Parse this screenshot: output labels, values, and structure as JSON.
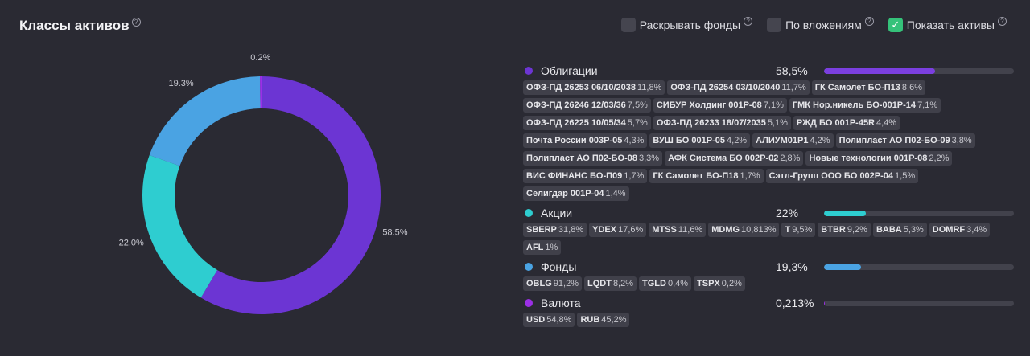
{
  "header": {
    "title": "Классы активов",
    "help": "?"
  },
  "controls": [
    {
      "label": "Раскрывать фонды",
      "checked": false,
      "check": "",
      "help": "?"
    },
    {
      "label": "По вложениям",
      "checked": false,
      "check": "",
      "help": "?"
    },
    {
      "label": "Показать активы",
      "checked": true,
      "check": "✓",
      "help": "?"
    }
  ],
  "chart_data": {
    "type": "pie",
    "donut": true,
    "slices": [
      {
        "name": "Облигации",
        "value": 58.5,
        "label": "58.5%",
        "color": "#6c35d3"
      },
      {
        "name": "Акции",
        "value": 22.0,
        "label": "22.0%",
        "color": "#2ecdd0"
      },
      {
        "name": "Фонды",
        "value": 19.3,
        "label": "19.3%",
        "color": "#4aa3e3"
      },
      {
        "name": "Валюта",
        "value": 0.213,
        "label": "0.2%",
        "color": "#9b2fe6"
      }
    ]
  },
  "classes": [
    {
      "name": "Облигации",
      "pct": "58,5%",
      "value": 58.5,
      "color": "#6c35d3",
      "bar_color": "#7b3fe0",
      "items": [
        {
          "name": "ОФЗ-ПД 26253 06/10/2038",
          "pct": "11,8%"
        },
        {
          "name": "ОФЗ-ПД 26254 03/10/2040",
          "pct": "11,7%"
        },
        {
          "name": "ГК Самолет БО-П13",
          "pct": "8,6%"
        },
        {
          "name": "ОФЗ-ПД 26246 12/03/36",
          "pct": "7,5%"
        },
        {
          "name": "СИБУР Холдинг 001P-08",
          "pct": "7,1%"
        },
        {
          "name": "ГМК Нор.никель БО-001P-14",
          "pct": "7,1%"
        },
        {
          "name": "ОФЗ-ПД 26225 10/05/34",
          "pct": "5,7%"
        },
        {
          "name": "ОФЗ-ПД 26233 18/07/2035",
          "pct": "5,1%"
        },
        {
          "name": "РЖД БО 001P-45R",
          "pct": "4,4%"
        },
        {
          "name": "Почта России 003Р-05",
          "pct": "4,3%"
        },
        {
          "name": "ВУШ БО 001Р-05",
          "pct": "4,2%"
        },
        {
          "name": "АЛИУМ01Р1",
          "pct": "4,2%"
        },
        {
          "name": "Полипласт АО П02-БО-09",
          "pct": "3,8%"
        },
        {
          "name": "Полипласт АО П02-БО-08",
          "pct": "3,3%"
        },
        {
          "name": "АФК Система БО 002Р-02",
          "pct": "2,8%"
        },
        {
          "name": "Новые технологии 001Р-08",
          "pct": "2,2%"
        },
        {
          "name": "ВИС ФИНАНС БО-П09",
          "pct": "1,7%"
        },
        {
          "name": "ГК Самолет БО-П18",
          "pct": "1,7%"
        },
        {
          "name": "Сэтл-Групп ООО БО 002Р-04",
          "pct": "1,5%"
        },
        {
          "name": "Селигдар 001Р-04",
          "pct": "1,4%"
        }
      ]
    },
    {
      "name": "Акции",
      "pct": "22%",
      "value": 22.0,
      "color": "#2ecdd0",
      "bar_color": "#2ecdd0",
      "items": [
        {
          "name": "SBERP",
          "pct": "31,8%"
        },
        {
          "name": "YDEX",
          "pct": "17,6%"
        },
        {
          "name": "MTSS",
          "pct": "11,6%"
        },
        {
          "name": "MDMG",
          "pct": "10,813%"
        },
        {
          "name": "T",
          "pct": "9,5%"
        },
        {
          "name": "BTBR",
          "pct": "9,2%"
        },
        {
          "name": "BABA",
          "pct": "5,3%"
        },
        {
          "name": "DOMRF",
          "pct": "3,4%"
        },
        {
          "name": "AFL",
          "pct": "1%"
        }
      ]
    },
    {
      "name": "Фонды",
      "pct": "19,3%",
      "value": 19.3,
      "color": "#4aa3e3",
      "bar_color": "#4aa3e3",
      "items": [
        {
          "name": "OBLG",
          "pct": "91,2%"
        },
        {
          "name": "LQDT",
          "pct": "8,2%"
        },
        {
          "name": "TGLD",
          "pct": "0,4%"
        },
        {
          "name": "TSPX",
          "pct": "0,2%"
        }
      ]
    },
    {
      "name": "Валюта",
      "pct": "0,213%",
      "value": 0.213,
      "color": "#9b2fe6",
      "bar_color": "#9b2fe6",
      "items": [
        {
          "name": "USD",
          "pct": "54,8%"
        },
        {
          "name": "RUB",
          "pct": "45,2%"
        }
      ]
    }
  ]
}
